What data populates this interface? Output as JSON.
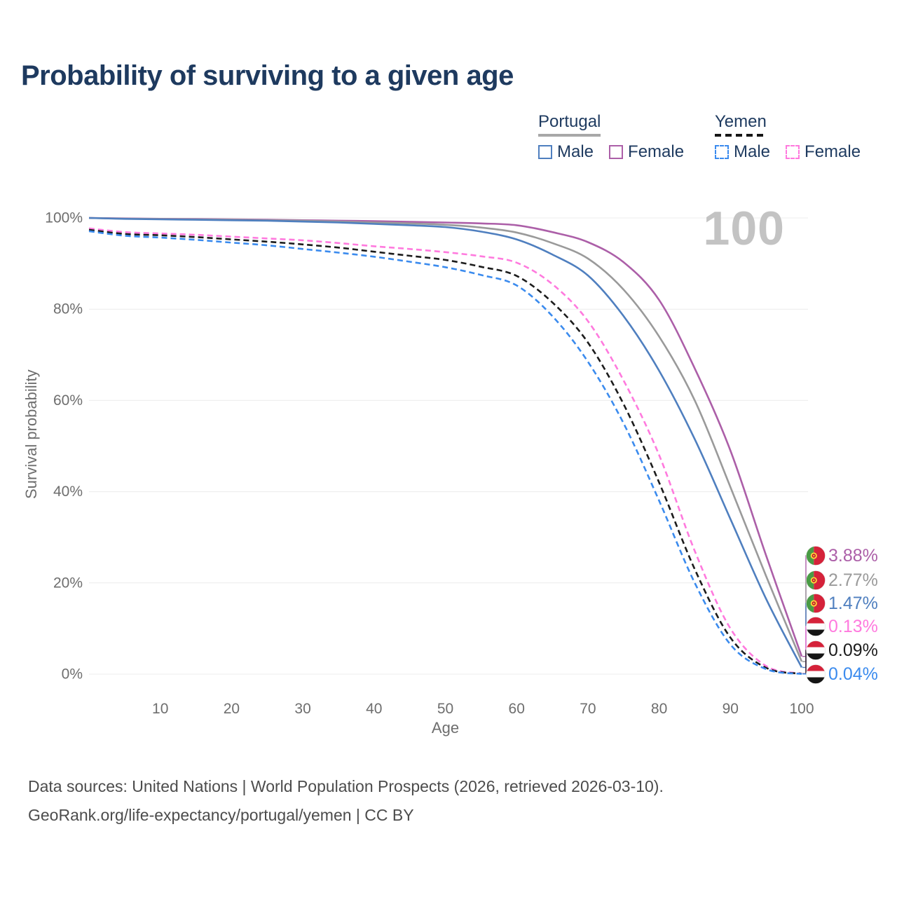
{
  "title": "Probability of surviving to a given age",
  "hover_age": "100",
  "legend": {
    "groups": [
      {
        "country": "Portugal",
        "line_style": "solid",
        "line_color": "#a8a8a8",
        "items": [
          {
            "label": "Male",
            "color": "#4f7fbf",
            "style": "solid"
          },
          {
            "label": "Female",
            "color": "#ac5fa8",
            "style": "solid"
          }
        ]
      },
      {
        "country": "Yemen",
        "line_style": "dashed",
        "line_color": "#161616",
        "items": [
          {
            "label": "Male",
            "color": "#3b8bee",
            "style": "dashed"
          },
          {
            "label": "Female",
            "color": "#ff7ade",
            "style": "dashed"
          }
        ]
      }
    ]
  },
  "chart_data": {
    "type": "line",
    "title": "Probability of surviving to a given age",
    "xlabel": "Age",
    "ylabel": "Survival probability",
    "xlim": [
      0,
      100
    ],
    "ylim": [
      0,
      100
    ],
    "grid": true,
    "legend_position": "top-right",
    "hover_x": 100,
    "x_ticks": [
      10,
      20,
      30,
      40,
      50,
      60,
      70,
      80,
      90,
      100
    ],
    "y_ticks": [
      {
        "value": 100,
        "label": "100%"
      },
      {
        "value": 80,
        "label": "80%"
      },
      {
        "value": 60,
        "label": "60%"
      },
      {
        "value": 40,
        "label": "40%"
      },
      {
        "value": 20,
        "label": "20%"
      },
      {
        "value": 0,
        "label": "0%"
      }
    ],
    "x": [
      0,
      5,
      10,
      15,
      20,
      25,
      30,
      35,
      40,
      45,
      50,
      55,
      60,
      65,
      70,
      75,
      80,
      85,
      90,
      95,
      100
    ],
    "series": [
      {
        "name": "Portugal Female",
        "color": "#ac5fa8",
        "dash": "solid",
        "flag": "portugal",
        "end_label": "3.88%",
        "values": [
          100,
          99.9,
          99.8,
          99.75,
          99.7,
          99.6,
          99.5,
          99.4,
          99.3,
          99.15,
          99.0,
          98.8,
          98.4,
          96.9,
          94.7,
          90.3,
          82.0,
          67.0,
          49.0,
          26.0,
          3.88
        ]
      },
      {
        "name": "Portugal (both sexes)",
        "color": "#9a9a9a",
        "dash": "solid",
        "flag": "portugal",
        "end_label": "2.77%",
        "values": [
          100,
          99.85,
          99.75,
          99.7,
          99.6,
          99.5,
          99.4,
          99.2,
          99.0,
          98.8,
          98.5,
          97.9,
          96.8,
          94.5,
          91.1,
          84.3,
          74.0,
          60.0,
          41.0,
          21.5,
          2.77
        ]
      },
      {
        "name": "Portugal Male",
        "color": "#4f7fbf",
        "dash": "solid",
        "flag": "portugal",
        "end_label": "1.47%",
        "values": [
          100,
          99.8,
          99.7,
          99.6,
          99.5,
          99.4,
          99.2,
          99.0,
          98.7,
          98.4,
          98.0,
          97.0,
          95.3,
          92.0,
          87.4,
          78.5,
          66.5,
          51.5,
          34.0,
          16.5,
          1.47
        ]
      },
      {
        "name": "Yemen Female",
        "color": "#ff7ade",
        "dash": "dashed",
        "flag": "yemen",
        "end_label": "0.13%",
        "values": [
          97.7,
          96.9,
          96.6,
          96.3,
          95.9,
          95.5,
          95.1,
          94.5,
          93.8,
          93.2,
          92.5,
          91.6,
          90.2,
          85.5,
          77.4,
          64.4,
          48.0,
          27.0,
          10.0,
          1.8,
          0.13
        ]
      },
      {
        "name": "Yemen (both sexes)",
        "color": "#1c1c1c",
        "dash": "dashed",
        "flag": "yemen",
        "end_label": "0.09%",
        "values": [
          97.4,
          96.5,
          96.2,
          95.8,
          95.3,
          94.8,
          94.2,
          93.5,
          92.6,
          91.7,
          90.8,
          89.3,
          87.3,
          81.5,
          72.7,
          59.2,
          42.0,
          23.0,
          8.0,
          1.4,
          0.09
        ]
      },
      {
        "name": "Yemen Male",
        "color": "#3b8bee",
        "dash": "dashed",
        "flag": "yemen",
        "end_label": "0.04%",
        "values": [
          97.1,
          96.1,
          95.7,
          95.2,
          94.6,
          94.0,
          93.2,
          92.4,
          91.5,
          90.4,
          89.2,
          87.5,
          85.2,
          78.5,
          68.5,
          55.0,
          38.0,
          20.0,
          6.5,
          1.1,
          0.04
        ]
      }
    ]
  },
  "footer": {
    "line1": "Data sources: United Nations | World Population Prospects (2026, retrieved 2026-03-10).",
    "line2": "GeoRank.org/life-expectancy/portugal/yemen | CC BY"
  }
}
